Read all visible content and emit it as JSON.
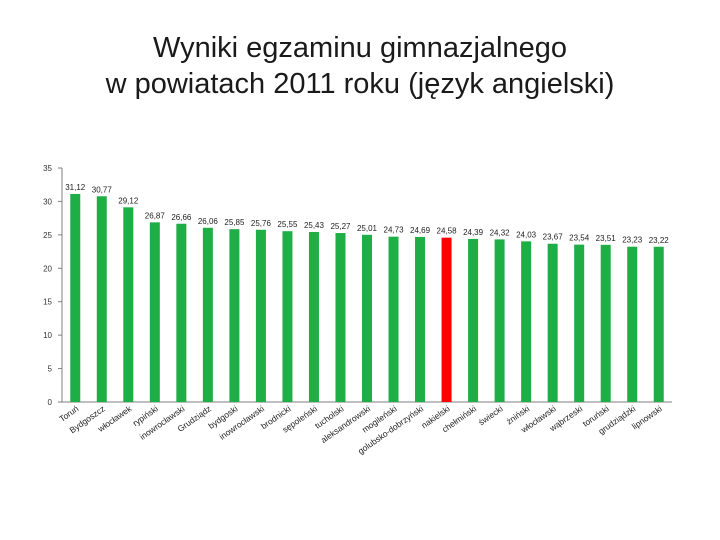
{
  "title": {
    "line1": "Wyniki egzaminu gimnazjalnego",
    "line2": "w powiatach  2011 roku (język angielski)"
  },
  "chart_data": {
    "type": "bar",
    "title": "Wyniki egzaminu gimnazjalnego w powiatach  2011 roku (język angielski)",
    "xlabel": "",
    "ylabel": "",
    "ylim": [
      0,
      35
    ],
    "yticks": [
      0,
      5,
      10,
      15,
      20,
      25,
      30,
      35
    ],
    "grid": false,
    "colors": {
      "default": "#1fad45",
      "highlight": "#ff0000",
      "axis": "#7f7f7f"
    },
    "highlight_category": "nakielski",
    "categories": [
      "Toruń",
      "Bydgoszcz",
      "włocławek",
      "rypiński",
      "inowrocławski",
      "Grudziądz",
      "bydgoski",
      "inowrocławski",
      "brodnicki",
      "sępoleński",
      "tucholski",
      "aleksandrowski",
      "mogileński",
      "golubsko-dobrzyński",
      "nakielski",
      "chełmiński",
      "świecki",
      "żniński",
      "włocławski",
      "wąbrzeski",
      "toruński",
      "grudziądzki",
      "lipnowski"
    ],
    "values": [
      31.12,
      30.77,
      29.12,
      26.87,
      26.66,
      26.06,
      25.85,
      25.76,
      25.55,
      25.43,
      25.27,
      25.01,
      24.73,
      24.69,
      24.58,
      24.39,
      24.32,
      24.03,
      23.67,
      23.54,
      23.51,
      23.23,
      23.22
    ],
    "value_labels": [
      "31,12",
      "30,77",
      "29,12",
      "26,87",
      "26,66",
      "26,06",
      "25,85",
      "25,76",
      "25,55",
      "25,43",
      "25,27",
      "25,01",
      "24,73",
      "24,69",
      "24,58",
      "24,39",
      "24,32",
      "24,03",
      "23,67",
      "23,54",
      "23,51",
      "23,23",
      "23,22"
    ]
  }
}
